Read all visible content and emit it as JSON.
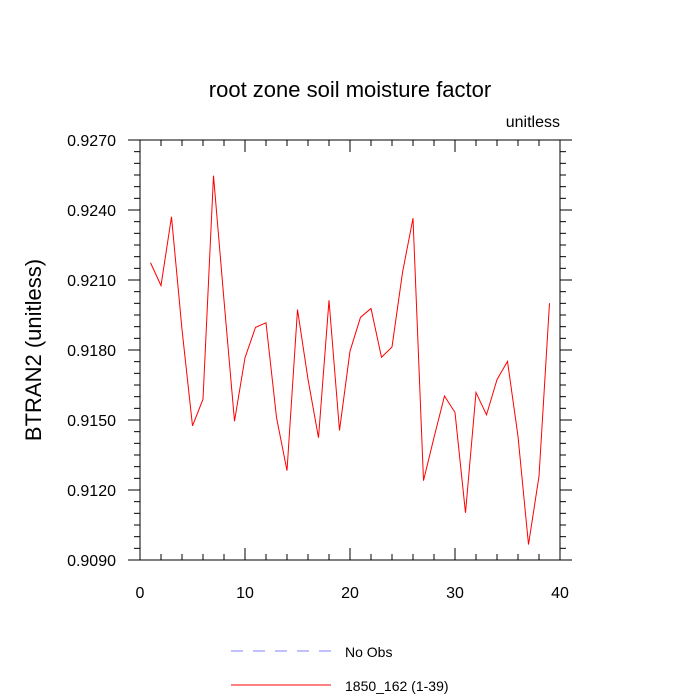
{
  "chart_data": {
    "type": "line",
    "title": "root zone soil moisture factor",
    "units_label": "unitless",
    "ylabel": "BTRAN2  (unitless)",
    "xlabel": "",
    "xlim": [
      0,
      40
    ],
    "ylim": [
      0.909,
      0.927
    ],
    "x_ticks": [
      0,
      10,
      20,
      30,
      40
    ],
    "x_minor_step": 2,
    "y_ticks": [
      0.909,
      0.912,
      0.915,
      0.918,
      0.921,
      0.924,
      0.927
    ],
    "y_tick_labels": [
      "0.9090",
      "0.9120",
      "0.9150",
      "0.9180",
      "0.9210",
      "0.9240",
      "0.9270"
    ],
    "y_minor_step": 0.0005,
    "grid": false,
    "legend_position": "bottom",
    "series": [
      {
        "name": "No Obs",
        "color": "#8080ff",
        "dashed": true,
        "x": [],
        "values": []
      },
      {
        "name": "1850_162 (1-39)",
        "color": "#ff0000",
        "dashed": false,
        "x": [
          1,
          2,
          3,
          4,
          5,
          6,
          7,
          8,
          9,
          10,
          11,
          12,
          13,
          14,
          15,
          16,
          17,
          18,
          19,
          20,
          21,
          22,
          23,
          24,
          25,
          26,
          27,
          28,
          29,
          30,
          31,
          32,
          33,
          34,
          35,
          36,
          37,
          38,
          39
        ],
        "values": [
          0.92174,
          0.92076,
          0.92371,
          0.91888,
          0.91475,
          0.91589,
          0.92547,
          0.92013,
          0.91495,
          0.91767,
          0.91897,
          0.91917,
          0.91511,
          0.91283,
          0.91973,
          0.91675,
          0.91424,
          0.92013,
          0.91455,
          0.91795,
          0.9194,
          0.91978,
          0.91769,
          0.91813,
          0.92132,
          0.92365,
          0.9124,
          0.91425,
          0.91603,
          0.91532,
          0.91102,
          0.91618,
          0.91522,
          0.91673,
          0.91751,
          0.9143,
          0.90966,
          0.91259,
          0.92001
        ]
      }
    ]
  }
}
